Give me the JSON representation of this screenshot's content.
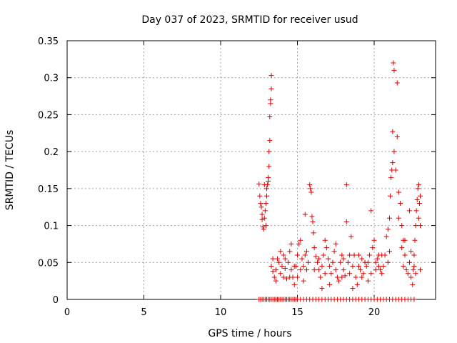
{
  "chart_data": {
    "type": "scatter",
    "title": "Day 037 of 2023, SRMTID for receiver usud",
    "xlabel": "GPS time / hours",
    "ylabel": "SRMTID / TECUs",
    "xlim": [
      0,
      24.0
    ],
    "ylim": [
      0,
      0.35
    ],
    "xticks": [
      0,
      5,
      10,
      15,
      20
    ],
    "xtick_labels": [
      "0",
      "5",
      "10",
      "15",
      "20"
    ],
    "yticks": [
      0,
      0.05,
      0.1,
      0.15,
      0.2,
      0.25,
      0.3,
      0.35
    ],
    "ytick_labels": [
      "0",
      "0.05",
      "0.1",
      "0.15",
      "0.2",
      "0.25",
      "0.3",
      "0.35"
    ],
    "grid": true,
    "marker": "+",
    "color": "#e00000",
    "series": [
      {
        "name": "usud",
        "points": [
          [
            12.5,
            0.156
          ],
          [
            12.55,
            0.14
          ],
          [
            12.6,
            0.13
          ],
          [
            12.65,
            0.125
          ],
          [
            12.7,
            0.108
          ],
          [
            12.75,
            0.098
          ],
          [
            12.8,
            0.095
          ],
          [
            12.85,
            0.11
          ],
          [
            12.9,
            0.12
          ],
          [
            12.95,
            0.13
          ],
          [
            13.0,
            0.14
          ],
          [
            13.05,
            0.155
          ],
          [
            13.1,
            0.165
          ],
          [
            13.15,
            0.18
          ],
          [
            13.15,
            0.2
          ],
          [
            13.2,
            0.215
          ],
          [
            13.2,
            0.247
          ],
          [
            13.25,
            0.265
          ],
          [
            13.25,
            0.27
          ],
          [
            13.3,
            0.285
          ],
          [
            13.3,
            0.303
          ],
          [
            13.0,
            0.15
          ],
          [
            12.85,
            0.155
          ],
          [
            13.1,
            0.16
          ],
          [
            12.7,
            0.115
          ],
          [
            12.95,
            0.1
          ],
          [
            13.3,
            0.045
          ],
          [
            13.4,
            0.038
          ],
          [
            13.5,
            0.03
          ],
          [
            13.6,
            0.04
          ],
          [
            13.7,
            0.055
          ],
          [
            13.8,
            0.05
          ],
          [
            13.9,
            0.035
          ],
          [
            14.0,
            0.045
          ],
          [
            14.1,
            0.06
          ],
          [
            14.2,
            0.042
          ],
          [
            14.3,
            0.028
          ],
          [
            14.4,
            0.05
          ],
          [
            14.5,
            0.065
          ],
          [
            14.6,
            0.04
          ],
          [
            14.7,
            0.03
          ],
          [
            14.8,
            0.02
          ],
          [
            14.9,
            0.045
          ],
          [
            15.0,
            0.06
          ],
          [
            15.1,
            0.075
          ],
          [
            15.2,
            0.08
          ],
          [
            15.3,
            0.055
          ],
          [
            15.4,
            0.045
          ],
          [
            15.5,
            0.06
          ],
          [
            15.5,
            0.115
          ],
          [
            15.6,
            0.04
          ],
          [
            15.7,
            0.05
          ],
          [
            15.8,
            0.155
          ],
          [
            15.85,
            0.15
          ],
          [
            15.9,
            0.145
          ],
          [
            15.95,
            0.112
          ],
          [
            16.0,
            0.105
          ],
          [
            16.05,
            0.09
          ],
          [
            16.1,
            0.07
          ],
          [
            16.2,
            0.058
          ],
          [
            16.3,
            0.05
          ],
          [
            16.4,
            0.04
          ],
          [
            16.5,
            0.03
          ],
          [
            16.6,
            0.045
          ],
          [
            16.7,
            0.06
          ],
          [
            16.8,
            0.08
          ],
          [
            16.9,
            0.07
          ],
          [
            17.0,
            0.055
          ],
          [
            17.1,
            0.045
          ],
          [
            17.2,
            0.035
          ],
          [
            17.3,
            0.05
          ],
          [
            17.4,
            0.065
          ],
          [
            17.5,
            0.04
          ],
          [
            17.6,
            0.03
          ],
          [
            17.7,
            0.025
          ],
          [
            17.8,
            0.05
          ],
          [
            17.9,
            0.06
          ],
          [
            18.0,
            0.04
          ],
          [
            18.1,
            0.032
          ],
          [
            18.2,
            0.155
          ],
          [
            18.2,
            0.105
          ],
          [
            18.3,
            0.05
          ],
          [
            18.4,
            0.035
          ],
          [
            18.5,
            0.085
          ],
          [
            18.6,
            0.045
          ],
          [
            18.7,
            0.06
          ],
          [
            18.8,
            0.03
          ],
          [
            18.9,
            0.02
          ],
          [
            19.0,
            0.045
          ],
          [
            19.1,
            0.04
          ],
          [
            19.2,
            0.055
          ],
          [
            19.3,
            0.035
          ],
          [
            19.4,
            0.05
          ],
          [
            19.5,
            0.045
          ],
          [
            19.6,
            0.025
          ],
          [
            19.7,
            0.06
          ],
          [
            19.8,
            0.12
          ],
          [
            19.9,
            0.07
          ],
          [
            20.0,
            0.08
          ],
          [
            20.1,
            0.05
          ],
          [
            20.2,
            0.055
          ],
          [
            20.3,
            0.045
          ],
          [
            20.4,
            0.04
          ],
          [
            20.5,
            0.035
          ],
          [
            20.6,
            0.045
          ],
          [
            20.7,
            0.06
          ],
          [
            20.8,
            0.085
          ],
          [
            20.9,
            0.095
          ],
          [
            21.0,
            0.11
          ],
          [
            21.05,
            0.14
          ],
          [
            21.1,
            0.165
          ],
          [
            21.15,
            0.175
          ],
          [
            21.2,
            0.185
          ],
          [
            21.2,
            0.227
          ],
          [
            21.25,
            0.32
          ],
          [
            21.3,
            0.31
          ],
          [
            21.3,
            0.2
          ],
          [
            21.4,
            0.175
          ],
          [
            21.5,
            0.293
          ],
          [
            21.5,
            0.22
          ],
          [
            21.6,
            0.145
          ],
          [
            21.7,
            0.13
          ],
          [
            21.8,
            0.1
          ],
          [
            21.9,
            0.08
          ],
          [
            22.0,
            0.06
          ],
          [
            22.1,
            0.04
          ],
          [
            22.2,
            0.035
          ],
          [
            22.3,
            0.05
          ],
          [
            22.4,
            0.03
          ],
          [
            22.5,
            0.02
          ],
          [
            22.55,
            0.04
          ],
          [
            22.6,
            0.06
          ],
          [
            22.65,
            0.08
          ],
          [
            22.7,
            0.1
          ],
          [
            22.75,
            0.12
          ],
          [
            22.8,
            0.135
          ],
          [
            22.85,
            0.15
          ],
          [
            22.9,
            0.155
          ],
          [
            22.9,
            0.11
          ],
          [
            22.95,
            0.13
          ],
          [
            23.0,
            0.1
          ],
          [
            23.0,
            0.14
          ],
          [
            22.6,
            0.045
          ],
          [
            22.4,
            0.065
          ],
          [
            21.9,
            0.045
          ],
          [
            21.8,
            0.07
          ],
          [
            21.0,
            0.065
          ],
          [
            20.9,
            0.05
          ],
          [
            20.5,
            0.06
          ],
          [
            20.1,
            0.04
          ],
          [
            19.6,
            0.05
          ],
          [
            19.2,
            0.03
          ],
          [
            18.6,
            0.015
          ],
          [
            18.0,
            0.055
          ],
          [
            17.5,
            0.075
          ],
          [
            17.1,
            0.02
          ],
          [
            16.8,
            0.035
          ],
          [
            16.4,
            0.055
          ],
          [
            16.1,
            0.04
          ],
          [
            15.6,
            0.065
          ],
          [
            15.2,
            0.04
          ],
          [
            14.8,
            0.045
          ],
          [
            14.6,
            0.075
          ],
          [
            14.2,
            0.055
          ],
          [
            13.9,
            0.065
          ],
          [
            13.6,
            0.025
          ],
          [
            13.4,
            0.055
          ],
          [
            14.1,
            0.03
          ],
          [
            14.5,
            0.03
          ],
          [
            15.0,
            0.03
          ],
          [
            15.4,
            0.025
          ],
          [
            16.6,
            0.015
          ],
          [
            17.9,
            0.03
          ],
          [
            18.4,
            0.06
          ],
          [
            19.0,
            0.06
          ],
          [
            19.8,
            0.035
          ],
          [
            20.3,
            0.06
          ],
          [
            21.6,
            0.11
          ],
          [
            22.0,
            0.08
          ],
          [
            22.3,
            0.12
          ],
          [
            22.7,
            0.035
          ],
          [
            23.0,
            0.04
          ],
          [
            12.5,
            0.0
          ],
          [
            12.6,
            0.0
          ],
          [
            12.7,
            0.0
          ],
          [
            12.8,
            0.0
          ],
          [
            12.9,
            0.0
          ],
          [
            13.0,
            0.0
          ],
          [
            13.1,
            0.0
          ],
          [
            13.2,
            0.0
          ],
          [
            13.3,
            0.0
          ],
          [
            13.4,
            0.0
          ],
          [
            13.5,
            0.0
          ],
          [
            13.6,
            0.0
          ],
          [
            13.7,
            0.0
          ],
          [
            13.8,
            0.0
          ],
          [
            13.9,
            0.0
          ],
          [
            14.0,
            0.0
          ],
          [
            14.1,
            0.0
          ],
          [
            14.2,
            0.0
          ],
          [
            14.3,
            0.0
          ],
          [
            14.4,
            0.0
          ],
          [
            14.5,
            0.0
          ],
          [
            14.6,
            0.0
          ],
          [
            14.7,
            0.0
          ],
          [
            14.8,
            0.0
          ],
          [
            14.9,
            0.0
          ],
          [
            15.0,
            0.0
          ],
          [
            15.2,
            0.0
          ],
          [
            15.4,
            0.0
          ],
          [
            15.6,
            0.0
          ],
          [
            15.8,
            0.0
          ],
          [
            16.0,
            0.0
          ],
          [
            16.2,
            0.0
          ],
          [
            16.4,
            0.0
          ],
          [
            16.6,
            0.0
          ],
          [
            16.8,
            0.0
          ],
          [
            17.0,
            0.0
          ],
          [
            17.2,
            0.0
          ],
          [
            17.4,
            0.0
          ],
          [
            17.6,
            0.0
          ],
          [
            17.8,
            0.0
          ],
          [
            18.0,
            0.0
          ],
          [
            18.2,
            0.0
          ],
          [
            18.4,
            0.0
          ],
          [
            18.6,
            0.0
          ],
          [
            18.8,
            0.0
          ],
          [
            19.0,
            0.0
          ],
          [
            19.2,
            0.0
          ],
          [
            19.4,
            0.0
          ],
          [
            19.6,
            0.0
          ],
          [
            19.8,
            0.0
          ],
          [
            20.0,
            0.0
          ],
          [
            20.2,
            0.0
          ],
          [
            20.4,
            0.0
          ],
          [
            20.6,
            0.0
          ],
          [
            20.8,
            0.0
          ],
          [
            21.0,
            0.0
          ],
          [
            21.2,
            0.0
          ],
          [
            21.4,
            0.0
          ],
          [
            21.6,
            0.0
          ],
          [
            21.8,
            0.0
          ],
          [
            22.0,
            0.0
          ],
          [
            22.2,
            0.0
          ],
          [
            22.4,
            0.0
          ],
          [
            22.6,
            0.0
          ]
        ]
      }
    ]
  }
}
